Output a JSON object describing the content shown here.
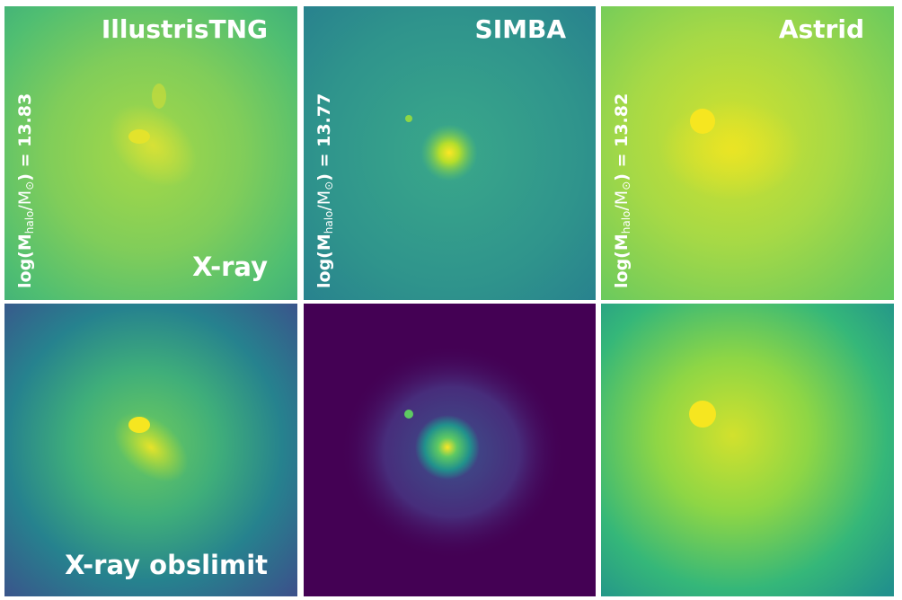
{
  "columns": [
    {
      "title": "IllustrisTNG",
      "mass_prefix": "log(M",
      "mass_sub": "halo",
      "mass_mid": "/M",
      "mass_sun": "⊙",
      "mass_suffix": ") = 13.83"
    },
    {
      "title": "SIMBA",
      "mass_prefix": "log(M",
      "mass_sub": "halo",
      "mass_mid": "/M",
      "mass_sun": "⊙",
      "mass_suffix": ") = 13.77"
    },
    {
      "title": "Astrid",
      "mass_prefix": "log(M",
      "mass_sub": "halo",
      "mass_mid": "/M",
      "mass_sun": "⊙",
      "mass_suffix": ") = 13.82"
    }
  ],
  "rows": [
    {
      "label": "X-ray"
    },
    {
      "label": "X-ray obslimit"
    }
  ],
  "colormap": "viridis",
  "colors": {
    "viridis_0": "#440154",
    "viridis_25": "#3b528b",
    "viridis_50": "#21918c",
    "viridis_75": "#5ec962",
    "viridis_100": "#fde725"
  }
}
